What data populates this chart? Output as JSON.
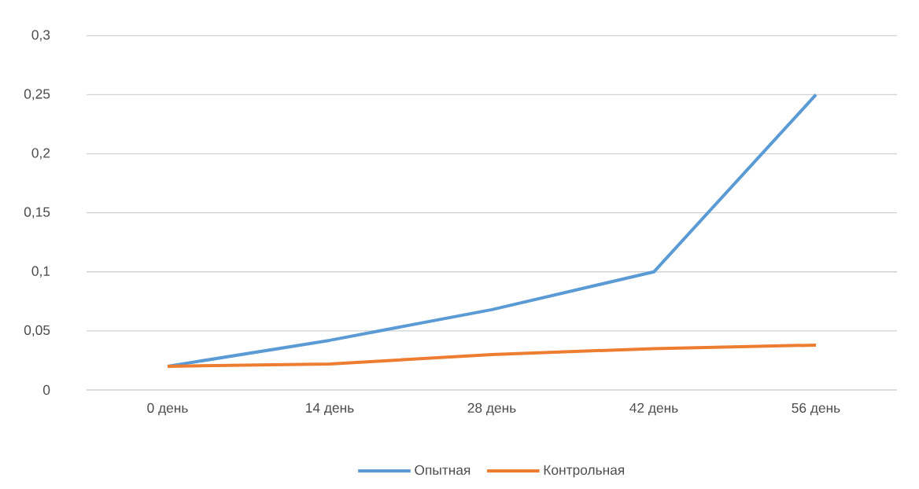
{
  "chart_data": {
    "type": "line",
    "categories": [
      "0 день",
      "14 день",
      "28 день",
      "42 день",
      "56 день"
    ],
    "series": [
      {
        "name": "Опытная",
        "color": "#5b9bd5",
        "values": [
          0.02,
          0.042,
          0.068,
          0.1,
          0.25
        ]
      },
      {
        "name": "Контрольная",
        "color": "#ed7d31",
        "values": [
          0.02,
          0.022,
          0.03,
          0.035,
          0.038
        ]
      }
    ],
    "ylim": [
      0,
      0.3
    ],
    "yticks": [
      {
        "value": 0,
        "label": "0"
      },
      {
        "value": 0.05,
        "label": "0,05"
      },
      {
        "value": 0.1,
        "label": "0,1"
      },
      {
        "value": 0.15,
        "label": "0,15"
      },
      {
        "value": 0.2,
        "label": "0,2"
      },
      {
        "value": 0.25,
        "label": "0,25"
      },
      {
        "value": 0.3,
        "label": "0,3"
      }
    ],
    "grid": "y",
    "legend": "bottom",
    "marker": "none",
    "line_style": "solid"
  }
}
